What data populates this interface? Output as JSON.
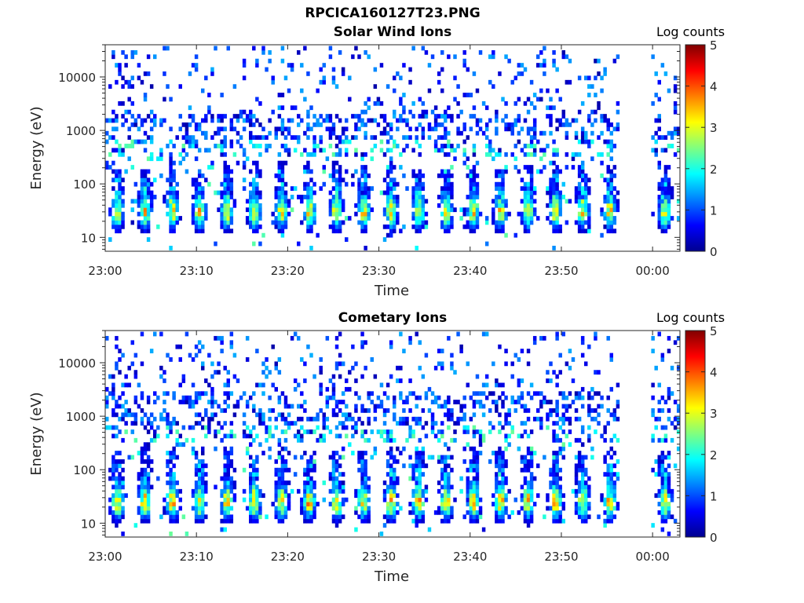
{
  "figure_title": "RPCICA160127T23.PNG",
  "colorbar_label": "Log counts",
  "chart_data": [
    {
      "type": "heatmap",
      "title": "Solar Wind Ions",
      "xlabel": "Time",
      "ylabel": "Energy (eV)",
      "x_ticks": [
        "23:00",
        "23:10",
        "23:20",
        "23:30",
        "23:40",
        "23:50",
        "00:00"
      ],
      "x_range_minutes": [
        0,
        63
      ],
      "y_scale": "log",
      "y_ticks": [
        10,
        100,
        1000,
        10000
      ],
      "y_tick_labels": [
        "10",
        "100",
        "1000",
        "10000"
      ],
      "y_range_eV": [
        5.5,
        40000
      ],
      "data_gap_minutes": [
        56.5,
        59.8
      ],
      "colorbar": {
        "label": "Log counts",
        "range": [
          0,
          5
        ],
        "ticks": [
          "0",
          "1",
          "2",
          "3",
          "4",
          "5"
        ],
        "colormap": "jet"
      },
      "profile": {
        "sweep_period_min": 3,
        "peak_log_counts": 3.5,
        "peak_energy_eV": 30,
        "high_energy_band_eV": [
          300,
          2000
        ]
      }
    },
    {
      "type": "heatmap",
      "title": "Cometary Ions",
      "xlabel": "Time",
      "ylabel": "Energy (eV)",
      "x_ticks": [
        "23:00",
        "23:10",
        "23:20",
        "23:30",
        "23:40",
        "23:50",
        "00:00"
      ],
      "x_range_minutes": [
        0,
        63
      ],
      "y_scale": "log",
      "y_ticks": [
        10,
        100,
        1000,
        10000
      ],
      "y_tick_labels": [
        "10",
        "100",
        "1000",
        "10000"
      ],
      "y_range_eV": [
        5.5,
        40000
      ],
      "data_gap_minutes": [
        56.5,
        59.8
      ],
      "colorbar": {
        "label": "Log counts",
        "range": [
          0,
          5
        ],
        "ticks": [
          "0",
          "1",
          "2",
          "3",
          "4",
          "5"
        ],
        "colormap": "jet"
      },
      "profile": {
        "sweep_period_min": 3,
        "peak_log_counts": 3.8,
        "peak_energy_eV": 25,
        "high_energy_band_eV": [
          300,
          3000
        ]
      }
    }
  ]
}
